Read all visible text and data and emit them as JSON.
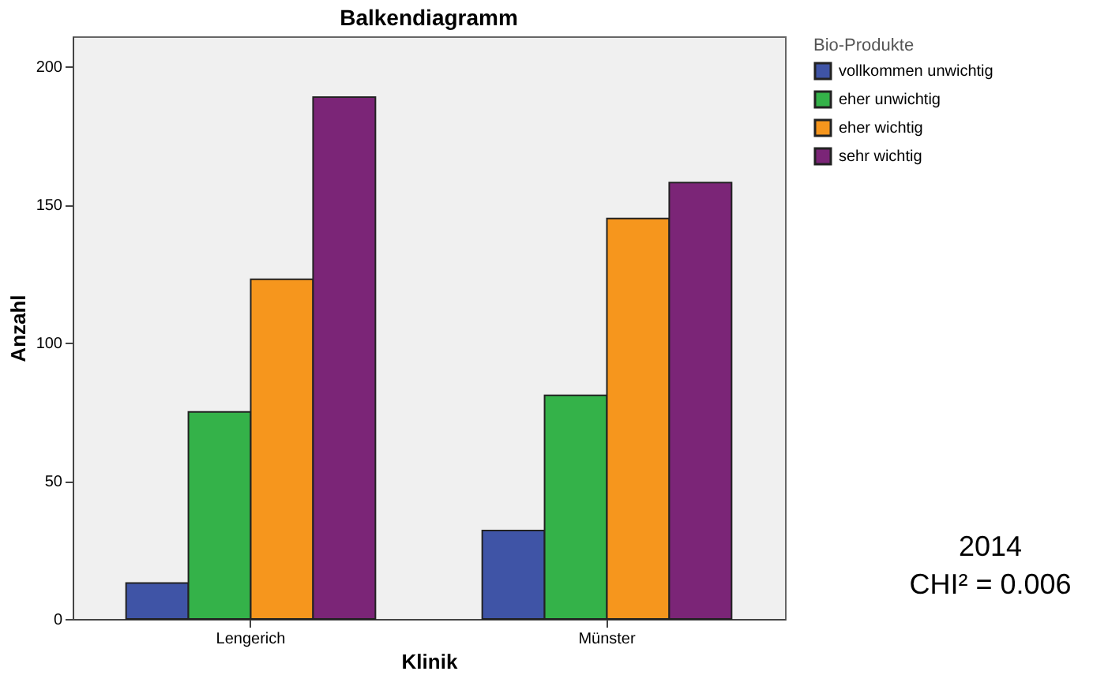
{
  "chart_data": {
    "type": "bar",
    "title": "Balkendiagramm",
    "xlabel": "Klinik",
    "ylabel": "Anzahl",
    "legend_title": "Bio-Produkte",
    "categories": [
      "Lengerich",
      "Münster"
    ],
    "series": [
      {
        "name": "vollkommen unwichtig",
        "color": "#3f54a6",
        "values": [
          13,
          32
        ]
      },
      {
        "name": "eher unwichtig",
        "color": "#34b249",
        "values": [
          75,
          81
        ]
      },
      {
        "name": "eher wichtig",
        "color": "#f6961d",
        "values": [
          123,
          145
        ]
      },
      {
        "name": "sehr wichtig",
        "color": "#7b2577",
        "values": [
          189,
          158
        ]
      }
    ],
    "ylim": [
      0,
      211
    ],
    "yticks": [
      0,
      50,
      100,
      150,
      200
    ],
    "grid": false,
    "legend": "top right",
    "annotations": [
      "2014",
      "CHI² = 0.006"
    ]
  }
}
